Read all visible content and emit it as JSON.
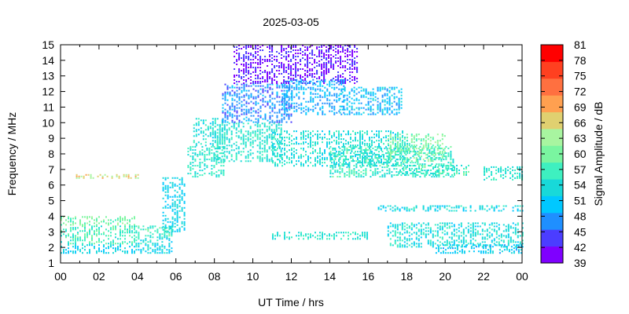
{
  "chart_data": {
    "type": "heatmap",
    "title": "2025-03-05",
    "xlabel": "UT Time / hrs",
    "ylabel": "Frequency / MHz",
    "colorbar_label": "Signal Amplitude / dB",
    "xlim": [
      0,
      24
    ],
    "ylim": [
      1,
      15
    ],
    "x_ticks": [
      "00",
      "02",
      "04",
      "06",
      "08",
      "10",
      "12",
      "14",
      "16",
      "18",
      "20",
      "22",
      "00"
    ],
    "y_ticks": [
      "1",
      "2",
      "3",
      "4",
      "5",
      "6",
      "7",
      "8",
      "9",
      "10",
      "11",
      "12",
      "13",
      "14",
      "15"
    ],
    "colorbar_ticks": [
      "39",
      "42",
      "45",
      "48",
      "51",
      "54",
      "57",
      "60",
      "63",
      "66",
      "69",
      "72",
      "75",
      "78",
      "81"
    ],
    "colorbar_range": [
      39,
      81
    ],
    "colorbar_colors": [
      "#7f00ff",
      "#4b3dff",
      "#1f8fff",
      "#00c8ff",
      "#18d9d9",
      "#3ef0c0",
      "#7af5a0",
      "#a8f5a0",
      "#e0d070",
      "#ffa050",
      "#ff7040",
      "#ff4020",
      "#ff0000"
    ],
    "grid": false,
    "regions": [
      {
        "t": [
          0.0,
          3.9
        ],
        "f": [
          1.6,
          2.2
        ],
        "amp": 52
      },
      {
        "t": [
          0.0,
          3.9
        ],
        "f": [
          2.2,
          3.4
        ],
        "amp": 57
      },
      {
        "t": [
          0.0,
          3.9
        ],
        "f": [
          3.4,
          4.0
        ],
        "amp": 60
      },
      {
        "t": [
          3.9,
          5.8
        ],
        "f": [
          1.6,
          2.6
        ],
        "amp": 53
      },
      {
        "t": [
          3.9,
          5.8
        ],
        "f": [
          2.6,
          3.4
        ],
        "amp": 56
      },
      {
        "t": [
          0.8,
          4.0
        ],
        "f": [
          6.4,
          6.7
        ],
        "amp": 66
      },
      {
        "t": [
          5.3,
          6.5
        ],
        "f": [
          3.0,
          6.5
        ],
        "amp": 52
      },
      {
        "t": [
          6.6,
          8.5
        ],
        "f": [
          6.5,
          8.5
        ],
        "amp": 55
      },
      {
        "t": [
          6.9,
          8.6
        ],
        "f": [
          8.5,
          10.3
        ],
        "amp": 54
      },
      {
        "t": [
          8.0,
          11.5
        ],
        "f": [
          7.5,
          10.0
        ],
        "amp": 55
      },
      {
        "t": [
          8.4,
          12.0
        ],
        "f": [
          10.0,
          12.5
        ],
        "amp": 47
      },
      {
        "t": [
          9.0,
          15.5
        ],
        "f": [
          12.5,
          15.0
        ],
        "amp": 42
      },
      {
        "t": [
          11.5,
          14.8
        ],
        "f": [
          10.5,
          12.8
        ],
        "amp": 49
      },
      {
        "t": [
          14.5,
          17.8
        ],
        "f": [
          10.5,
          12.3
        ],
        "amp": 50
      },
      {
        "t": [
          11.0,
          18.0
        ],
        "f": [
          7.2,
          9.5
        ],
        "amp": 54
      },
      {
        "t": [
          14.0,
          20.5
        ],
        "f": [
          6.5,
          8.5
        ],
        "amp": 56
      },
      {
        "t": [
          17.0,
          20.0
        ],
        "f": [
          7.5,
          9.3
        ],
        "amp": 60
      },
      {
        "t": [
          17.5,
          21.2
        ],
        "f": [
          6.6,
          7.3
        ],
        "amp": 56
      },
      {
        "t": [
          16.5,
          24.0
        ],
        "f": [
          4.3,
          4.7
        ],
        "amp": 53
      },
      {
        "t": [
          17.0,
          24.0
        ],
        "f": [
          2.0,
          3.6
        ],
        "amp": 54
      },
      {
        "t": [
          19.5,
          24.0
        ],
        "f": [
          1.6,
          2.2
        ],
        "amp": 51
      },
      {
        "t": [
          22.0,
          24.0
        ],
        "f": [
          6.3,
          7.2
        ],
        "amp": 55
      },
      {
        "t": [
          11.0,
          16.0
        ],
        "f": [
          2.5,
          3.0
        ],
        "amp": 55
      }
    ]
  }
}
